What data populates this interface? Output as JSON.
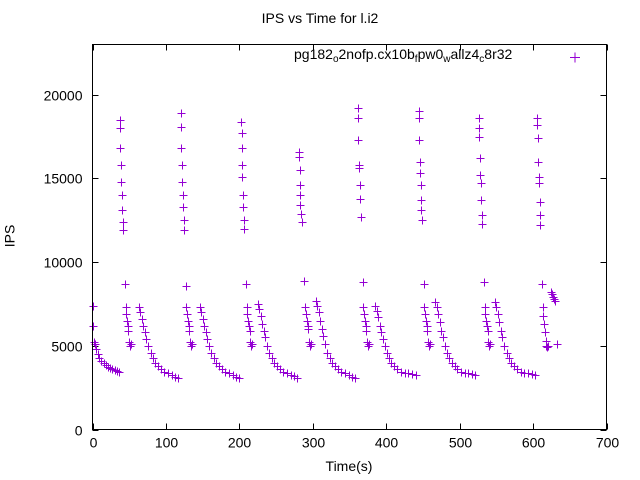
{
  "chart_data": {
    "type": "scatter",
    "title": "IPS vs Time for l.i2",
    "xlabel": "Time(s)",
    "ylabel": "IPS",
    "xlim": [
      0,
      700
    ],
    "ylim": [
      0,
      23000
    ],
    "xticks": [
      0,
      100,
      200,
      300,
      400,
      500,
      600,
      700
    ],
    "yticks": [
      0,
      5000,
      10000,
      15000,
      20000
    ],
    "legend_position": "top-right",
    "legend_parts": [
      {
        "text": "pg182",
        "sub": "o"
      },
      {
        "text": "2nofp.cx10b",
        "sub": "f"
      },
      {
        "text": "pw0",
        "sub": "w"
      },
      {
        "text": "allz4",
        "sub": "c"
      },
      {
        "text": "8r32",
        "sub": ""
      }
    ],
    "series": [
      {
        "name": "pg182_o2nofp.cx10b_fpw0_wallz4_c8r32",
        "color": "#9400d3",
        "marker": "plus",
        "points": [
          [
            0,
            7400
          ],
          [
            1,
            6200
          ],
          [
            2,
            5200
          ],
          [
            3,
            5100
          ],
          [
            5,
            4800
          ],
          [
            7,
            4500
          ],
          [
            9,
            4300
          ],
          [
            12,
            4100
          ],
          [
            15,
            3950
          ],
          [
            18,
            3850
          ],
          [
            21,
            3750
          ],
          [
            24,
            3700
          ],
          [
            27,
            3600
          ],
          [
            30,
            3550
          ],
          [
            33,
            3500
          ],
          [
            36,
            3450
          ],
          [
            37,
            18500
          ],
          [
            38,
            18000
          ],
          [
            38,
            16800
          ],
          [
            39,
            15800
          ],
          [
            39,
            14800
          ],
          [
            40,
            14000
          ],
          [
            40,
            13100
          ],
          [
            41,
            12400
          ],
          [
            42,
            11900
          ],
          [
            44,
            8700
          ],
          [
            45,
            7300
          ],
          [
            46,
            6900
          ],
          [
            47,
            6500
          ],
          [
            48,
            6200
          ],
          [
            49,
            5900
          ],
          [
            50,
            5200
          ],
          [
            51,
            5000
          ],
          [
            52,
            5100
          ],
          [
            63,
            7300
          ],
          [
            65,
            7000
          ],
          [
            67,
            6600
          ],
          [
            69,
            6200
          ],
          [
            71,
            5800
          ],
          [
            73,
            5400
          ],
          [
            76,
            5000
          ],
          [
            79,
            4600
          ],
          [
            82,
            4300
          ],
          [
            85,
            4000
          ],
          [
            89,
            3800
          ],
          [
            93,
            3600
          ],
          [
            98,
            3450
          ],
          [
            103,
            3350
          ],
          [
            108,
            3250
          ],
          [
            113,
            3150
          ],
          [
            117,
            3100
          ],
          [
            120,
            18900
          ],
          [
            121,
            18100
          ],
          [
            121,
            16800
          ],
          [
            122,
            15800
          ],
          [
            122,
            14800
          ],
          [
            123,
            14000
          ],
          [
            123,
            13300
          ],
          [
            124,
            12500
          ],
          [
            125,
            11900
          ],
          [
            127,
            8600
          ],
          [
            128,
            7300
          ],
          [
            129,
            6900
          ],
          [
            130,
            6500
          ],
          [
            131,
            6200
          ],
          [
            132,
            5900
          ],
          [
            133,
            5200
          ],
          [
            134,
            5000
          ],
          [
            135,
            5100
          ],
          [
            146,
            7300
          ],
          [
            148,
            7000
          ],
          [
            150,
            6600
          ],
          [
            152,
            6200
          ],
          [
            154,
            5800
          ],
          [
            156,
            5400
          ],
          [
            159,
            5000
          ],
          [
            162,
            4600
          ],
          [
            165,
            4300
          ],
          [
            168,
            4000
          ],
          [
            172,
            3800
          ],
          [
            176,
            3600
          ],
          [
            181,
            3450
          ],
          [
            186,
            3350
          ],
          [
            191,
            3250
          ],
          [
            196,
            3150
          ],
          [
            200,
            3100
          ],
          [
            202,
            18400
          ],
          [
            203,
            17700
          ],
          [
            203,
            16800
          ],
          [
            204,
            15800
          ],
          [
            204,
            15100
          ],
          [
            205,
            14000
          ],
          [
            205,
            13300
          ],
          [
            206,
            12500
          ],
          [
            207,
            12000
          ],
          [
            209,
            8700
          ],
          [
            210,
            7300
          ],
          [
            211,
            6900
          ],
          [
            212,
            6500
          ],
          [
            213,
            6200
          ],
          [
            214,
            5900
          ],
          [
            215,
            5200
          ],
          [
            216,
            5000
          ],
          [
            217,
            5100
          ],
          [
            225,
            7500
          ],
          [
            227,
            7200
          ],
          [
            229,
            6800
          ],
          [
            231,
            6300
          ],
          [
            233,
            5900
          ],
          [
            235,
            5500
          ],
          [
            238,
            5000
          ],
          [
            241,
            4600
          ],
          [
            244,
            4300
          ],
          [
            247,
            4000
          ],
          [
            251,
            3800
          ],
          [
            255,
            3600
          ],
          [
            260,
            3450
          ],
          [
            265,
            3350
          ],
          [
            270,
            3250
          ],
          [
            275,
            3200
          ],
          [
            279,
            3100
          ],
          [
            281,
            16600
          ],
          [
            281,
            16300
          ],
          [
            282,
            15500
          ],
          [
            282,
            14600
          ],
          [
            283,
            14000
          ],
          [
            283,
            13400
          ],
          [
            284,
            12900
          ],
          [
            285,
            12400
          ],
          [
            288,
            8900
          ],
          [
            290,
            7300
          ],
          [
            291,
            6900
          ],
          [
            292,
            6500
          ],
          [
            293,
            6200
          ],
          [
            294,
            6000
          ],
          [
            295,
            5200
          ],
          [
            296,
            5000
          ],
          [
            297,
            5100
          ],
          [
            304,
            7700
          ],
          [
            306,
            7400
          ],
          [
            308,
            7000
          ],
          [
            310,
            6500
          ],
          [
            312,
            6000
          ],
          [
            314,
            5600
          ],
          [
            317,
            5100
          ],
          [
            320,
            4600
          ],
          [
            323,
            4300
          ],
          [
            326,
            4000
          ],
          [
            330,
            3800
          ],
          [
            334,
            3600
          ],
          [
            339,
            3450
          ],
          [
            344,
            3350
          ],
          [
            349,
            3250
          ],
          [
            354,
            3150
          ],
          [
            358,
            3100
          ],
          [
            361,
            19200
          ],
          [
            362,
            18600
          ],
          [
            362,
            17300
          ],
          [
            363,
            15800
          ],
          [
            363,
            15600
          ],
          [
            364,
            14600
          ],
          [
            364,
            13800
          ],
          [
            365,
            12700
          ],
          [
            368,
            8800
          ],
          [
            369,
            7300
          ],
          [
            370,
            6900
          ],
          [
            371,
            6500
          ],
          [
            372,
            6200
          ],
          [
            373,
            5900
          ],
          [
            374,
            5200
          ],
          [
            375,
            5000
          ],
          [
            376,
            5100
          ],
          [
            385,
            7400
          ],
          [
            387,
            7100
          ],
          [
            389,
            6700
          ],
          [
            391,
            6200
          ],
          [
            393,
            5800
          ],
          [
            395,
            5400
          ],
          [
            398,
            5000
          ],
          [
            401,
            4600
          ],
          [
            404,
            4300
          ],
          [
            407,
            4000
          ],
          [
            411,
            3800
          ],
          [
            415,
            3600
          ],
          [
            420,
            3450
          ],
          [
            425,
            3400
          ],
          [
            430,
            3350
          ],
          [
            435,
            3300
          ],
          [
            440,
            3250
          ],
          [
            444,
            19000
          ],
          [
            445,
            18600
          ],
          [
            445,
            17300
          ],
          [
            446,
            16000
          ],
          [
            446,
            15300
          ],
          [
            447,
            14600
          ],
          [
            447,
            13700
          ],
          [
            448,
            13100
          ],
          [
            449,
            12500
          ],
          [
            451,
            8700
          ],
          [
            452,
            7300
          ],
          [
            453,
            6900
          ],
          [
            454,
            6500
          ],
          [
            455,
            6200
          ],
          [
            456,
            5900
          ],
          [
            457,
            5200
          ],
          [
            458,
            5000
          ],
          [
            459,
            5100
          ],
          [
            467,
            7600
          ],
          [
            469,
            7300
          ],
          [
            471,
            6900
          ],
          [
            473,
            6400
          ],
          [
            475,
            5900
          ],
          [
            477,
            5500
          ],
          [
            480,
            5000
          ],
          [
            483,
            4600
          ],
          [
            486,
            4300
          ],
          [
            489,
            4000
          ],
          [
            493,
            3800
          ],
          [
            497,
            3600
          ],
          [
            502,
            3450
          ],
          [
            507,
            3400
          ],
          [
            512,
            3350
          ],
          [
            517,
            3300
          ],
          [
            521,
            3250
          ],
          [
            526,
            18600
          ],
          [
            527,
            18000
          ],
          [
            527,
            17500
          ],
          [
            528,
            16200
          ],
          [
            528,
            15200
          ],
          [
            529,
            14700
          ],
          [
            529,
            13700
          ],
          [
            530,
            12800
          ],
          [
            531,
            12300
          ],
          [
            533,
            8800
          ],
          [
            534,
            7300
          ],
          [
            535,
            6900
          ],
          [
            536,
            6500
          ],
          [
            537,
            6200
          ],
          [
            538,
            5900
          ],
          [
            539,
            5200
          ],
          [
            540,
            5000
          ],
          [
            541,
            5100
          ],
          [
            548,
            7600
          ],
          [
            550,
            7300
          ],
          [
            552,
            6900
          ],
          [
            554,
            6400
          ],
          [
            556,
            5900
          ],
          [
            558,
            5500
          ],
          [
            561,
            5000
          ],
          [
            564,
            4600
          ],
          [
            567,
            4300
          ],
          [
            570,
            4000
          ],
          [
            574,
            3800
          ],
          [
            578,
            3600
          ],
          [
            583,
            3450
          ],
          [
            588,
            3400
          ],
          [
            593,
            3350
          ],
          [
            598,
            3300
          ],
          [
            602,
            3250
          ],
          [
            606,
            18600
          ],
          [
            606,
            18200
          ],
          [
            607,
            17400
          ],
          [
            607,
            16000
          ],
          [
            608,
            15100
          ],
          [
            608,
            14700
          ],
          [
            609,
            13600
          ],
          [
            609,
            12800
          ],
          [
            610,
            12200
          ],
          [
            612,
            8700
          ],
          [
            613,
            7300
          ],
          [
            614,
            6800
          ],
          [
            615,
            6300
          ],
          [
            616,
            5800
          ],
          [
            617,
            5300
          ],
          [
            618,
            5000
          ],
          [
            619,
            4900
          ],
          [
            621,
            5000
          ],
          [
            624,
            8200
          ],
          [
            626,
            8100
          ],
          [
            627,
            7900
          ],
          [
            628,
            7800
          ],
          [
            630,
            7700
          ],
          [
            632,
            5100
          ]
        ]
      }
    ]
  }
}
